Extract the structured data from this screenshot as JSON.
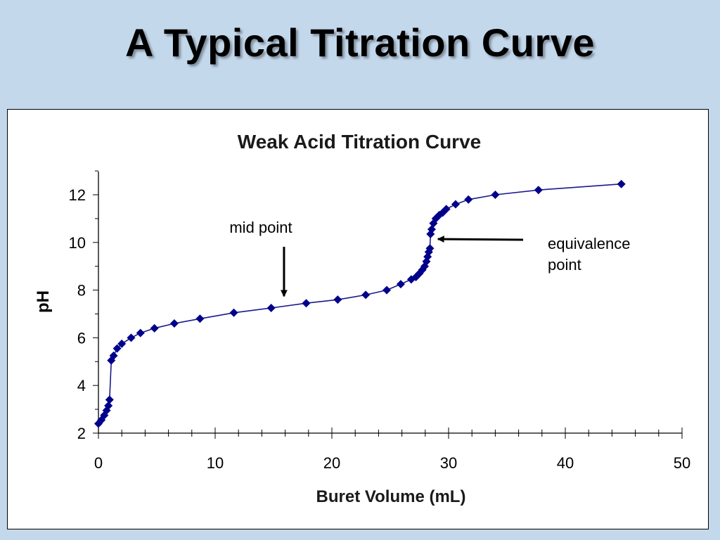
{
  "slide": {
    "title": "A Typical Titration Curve"
  },
  "chart_data": {
    "type": "scatter",
    "title": "Weak Acid Titration Curve",
    "xlabel": "Buret Volume (mL)",
    "ylabel": "pH",
    "xlim": [
      0,
      50
    ],
    "ylim": [
      2,
      13
    ],
    "x_ticks": [
      0,
      10,
      20,
      30,
      40,
      50
    ],
    "y_ticks": [
      2,
      4,
      6,
      8,
      10,
      12
    ],
    "grid": false,
    "legend": "none",
    "series": [
      {
        "marker_color": "#00008b",
        "line_color": "#1a1a8c",
        "points": [
          [
            0.0,
            2.4
          ],
          [
            0.25,
            2.55
          ],
          [
            0.5,
            2.75
          ],
          [
            0.7,
            2.95
          ],
          [
            0.85,
            3.15
          ],
          [
            0.95,
            3.4
          ],
          [
            1.1,
            5.05
          ],
          [
            1.3,
            5.25
          ],
          [
            1.6,
            5.55
          ],
          [
            2.0,
            5.75
          ],
          [
            2.8,
            6.0
          ],
          [
            3.6,
            6.2
          ],
          [
            4.8,
            6.4
          ],
          [
            6.5,
            6.6
          ],
          [
            8.7,
            6.8
          ],
          [
            11.6,
            7.05
          ],
          [
            14.8,
            7.25
          ],
          [
            17.8,
            7.45
          ],
          [
            20.5,
            7.6
          ],
          [
            22.9,
            7.8
          ],
          [
            24.7,
            8.0
          ],
          [
            25.9,
            8.25
          ],
          [
            26.8,
            8.45
          ],
          [
            27.2,
            8.55
          ],
          [
            27.5,
            8.7
          ],
          [
            27.75,
            8.85
          ],
          [
            27.95,
            9.0
          ],
          [
            28.1,
            9.2
          ],
          [
            28.2,
            9.4
          ],
          [
            28.3,
            9.6
          ],
          [
            28.4,
            9.75
          ],
          [
            28.45,
            10.35
          ],
          [
            28.55,
            10.55
          ],
          [
            28.7,
            10.8
          ],
          [
            28.9,
            11.0
          ],
          [
            29.2,
            11.15
          ],
          [
            29.5,
            11.25
          ],
          [
            29.8,
            11.4
          ],
          [
            30.6,
            11.6
          ],
          [
            31.7,
            11.8
          ],
          [
            34.0,
            12.0
          ],
          [
            37.7,
            12.2
          ],
          [
            44.8,
            12.45
          ]
        ]
      }
    ],
    "annotations": [
      {
        "text": "mid point",
        "target": [
          15.9,
          7.8
        ]
      },
      {
        "text_line1": "equivalence",
        "text_line2": "point",
        "target": [
          28.6,
          10.1
        ]
      }
    ]
  }
}
